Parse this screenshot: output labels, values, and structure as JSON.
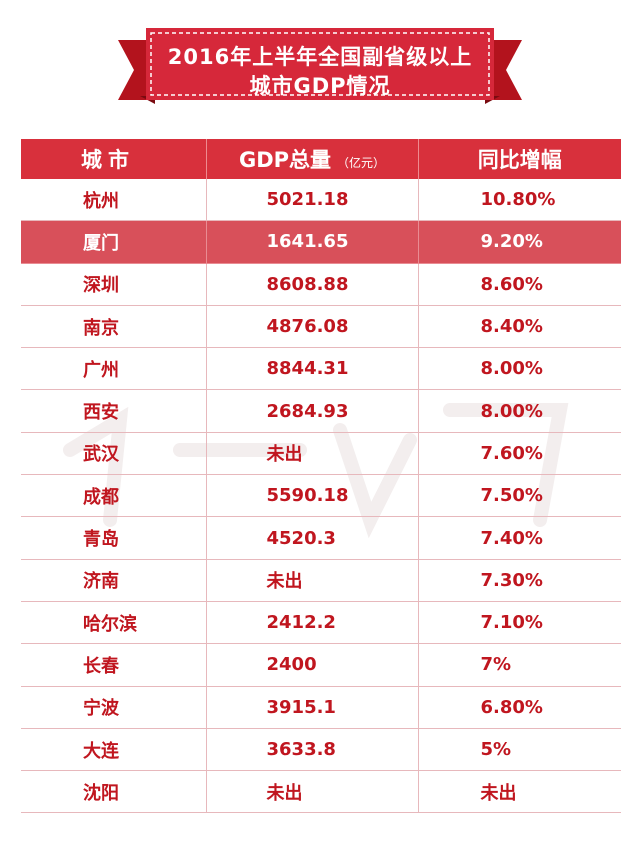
{
  "colors": {
    "accent": "#d8303c",
    "text": "#c0161f",
    "highlight_row": "#d8505a",
    "grid": "#e7b8bc"
  },
  "banner": {
    "line1": "2016年上半年全国副省级以上",
    "line2": "城市GDP情况"
  },
  "table": {
    "headers": {
      "city": "城市",
      "gdp": "GDP总量",
      "gdp_unit": "（亿元）",
      "growth": "同比增幅"
    },
    "highlight_city": "厦门",
    "rows": [
      {
        "city": "杭州",
        "gdp": "5021.18",
        "growth": "10.80%"
      },
      {
        "city": "厦门",
        "gdp": "1641.65",
        "growth": "9.20%"
      },
      {
        "city": "深圳",
        "gdp": "8608.88",
        "growth": "8.60%"
      },
      {
        "city": "南京",
        "gdp": "4876.08",
        "growth": "8.40%"
      },
      {
        "city": "广州",
        "gdp": "8844.31",
        "growth": "8.00%"
      },
      {
        "city": "西安",
        "gdp": "2684.93",
        "growth": "8.00%"
      },
      {
        "city": "武汉",
        "gdp": "未出",
        "growth": "7.60%"
      },
      {
        "city": "成都",
        "gdp": "5590.18",
        "growth": "7.50%"
      },
      {
        "city": "青岛",
        "gdp": "4520.3",
        "growth": "7.40%"
      },
      {
        "city": "济南",
        "gdp": "未出",
        "growth": "7.30%"
      },
      {
        "city": "哈尔滨",
        "gdp": "2412.2",
        "growth": "7.10%"
      },
      {
        "city": "长春",
        "gdp": "2400",
        "growth": "7%"
      },
      {
        "city": "宁波",
        "gdp": "3915.1",
        "growth": "6.80%"
      },
      {
        "city": "大连",
        "gdp": "3633.8",
        "growth": "5%"
      },
      {
        "city": "沈阳",
        "gdp": "未出",
        "growth": "未出"
      }
    ]
  },
  "chart_data": {
    "type": "table",
    "title": "2016年上半年全国副省级以上城市GDP情况",
    "columns": [
      "城市",
      "GDP总量（亿元）",
      "同比增幅"
    ],
    "rows": [
      [
        "杭州",
        "5021.18",
        "10.80%"
      ],
      [
        "厦门",
        "1641.65",
        "9.20%"
      ],
      [
        "深圳",
        "8608.88",
        "8.60%"
      ],
      [
        "南京",
        "4876.08",
        "8.40%"
      ],
      [
        "广州",
        "8844.31",
        "8.00%"
      ],
      [
        "西安",
        "2684.93",
        "8.00%"
      ],
      [
        "武汉",
        "未出",
        "7.60%"
      ],
      [
        "成都",
        "5590.18",
        "7.50%"
      ],
      [
        "青岛",
        "4520.3",
        "7.40%"
      ],
      [
        "济南",
        "未出",
        "7.30%"
      ],
      [
        "哈尔滨",
        "2412.2",
        "7.10%"
      ],
      [
        "长春",
        "2400",
        "7%"
      ],
      [
        "宁波",
        "3915.1",
        "6.80%"
      ],
      [
        "大连",
        "3633.8",
        "5%"
      ],
      [
        "沈阳",
        "未出",
        "未出"
      ]
    ]
  }
}
